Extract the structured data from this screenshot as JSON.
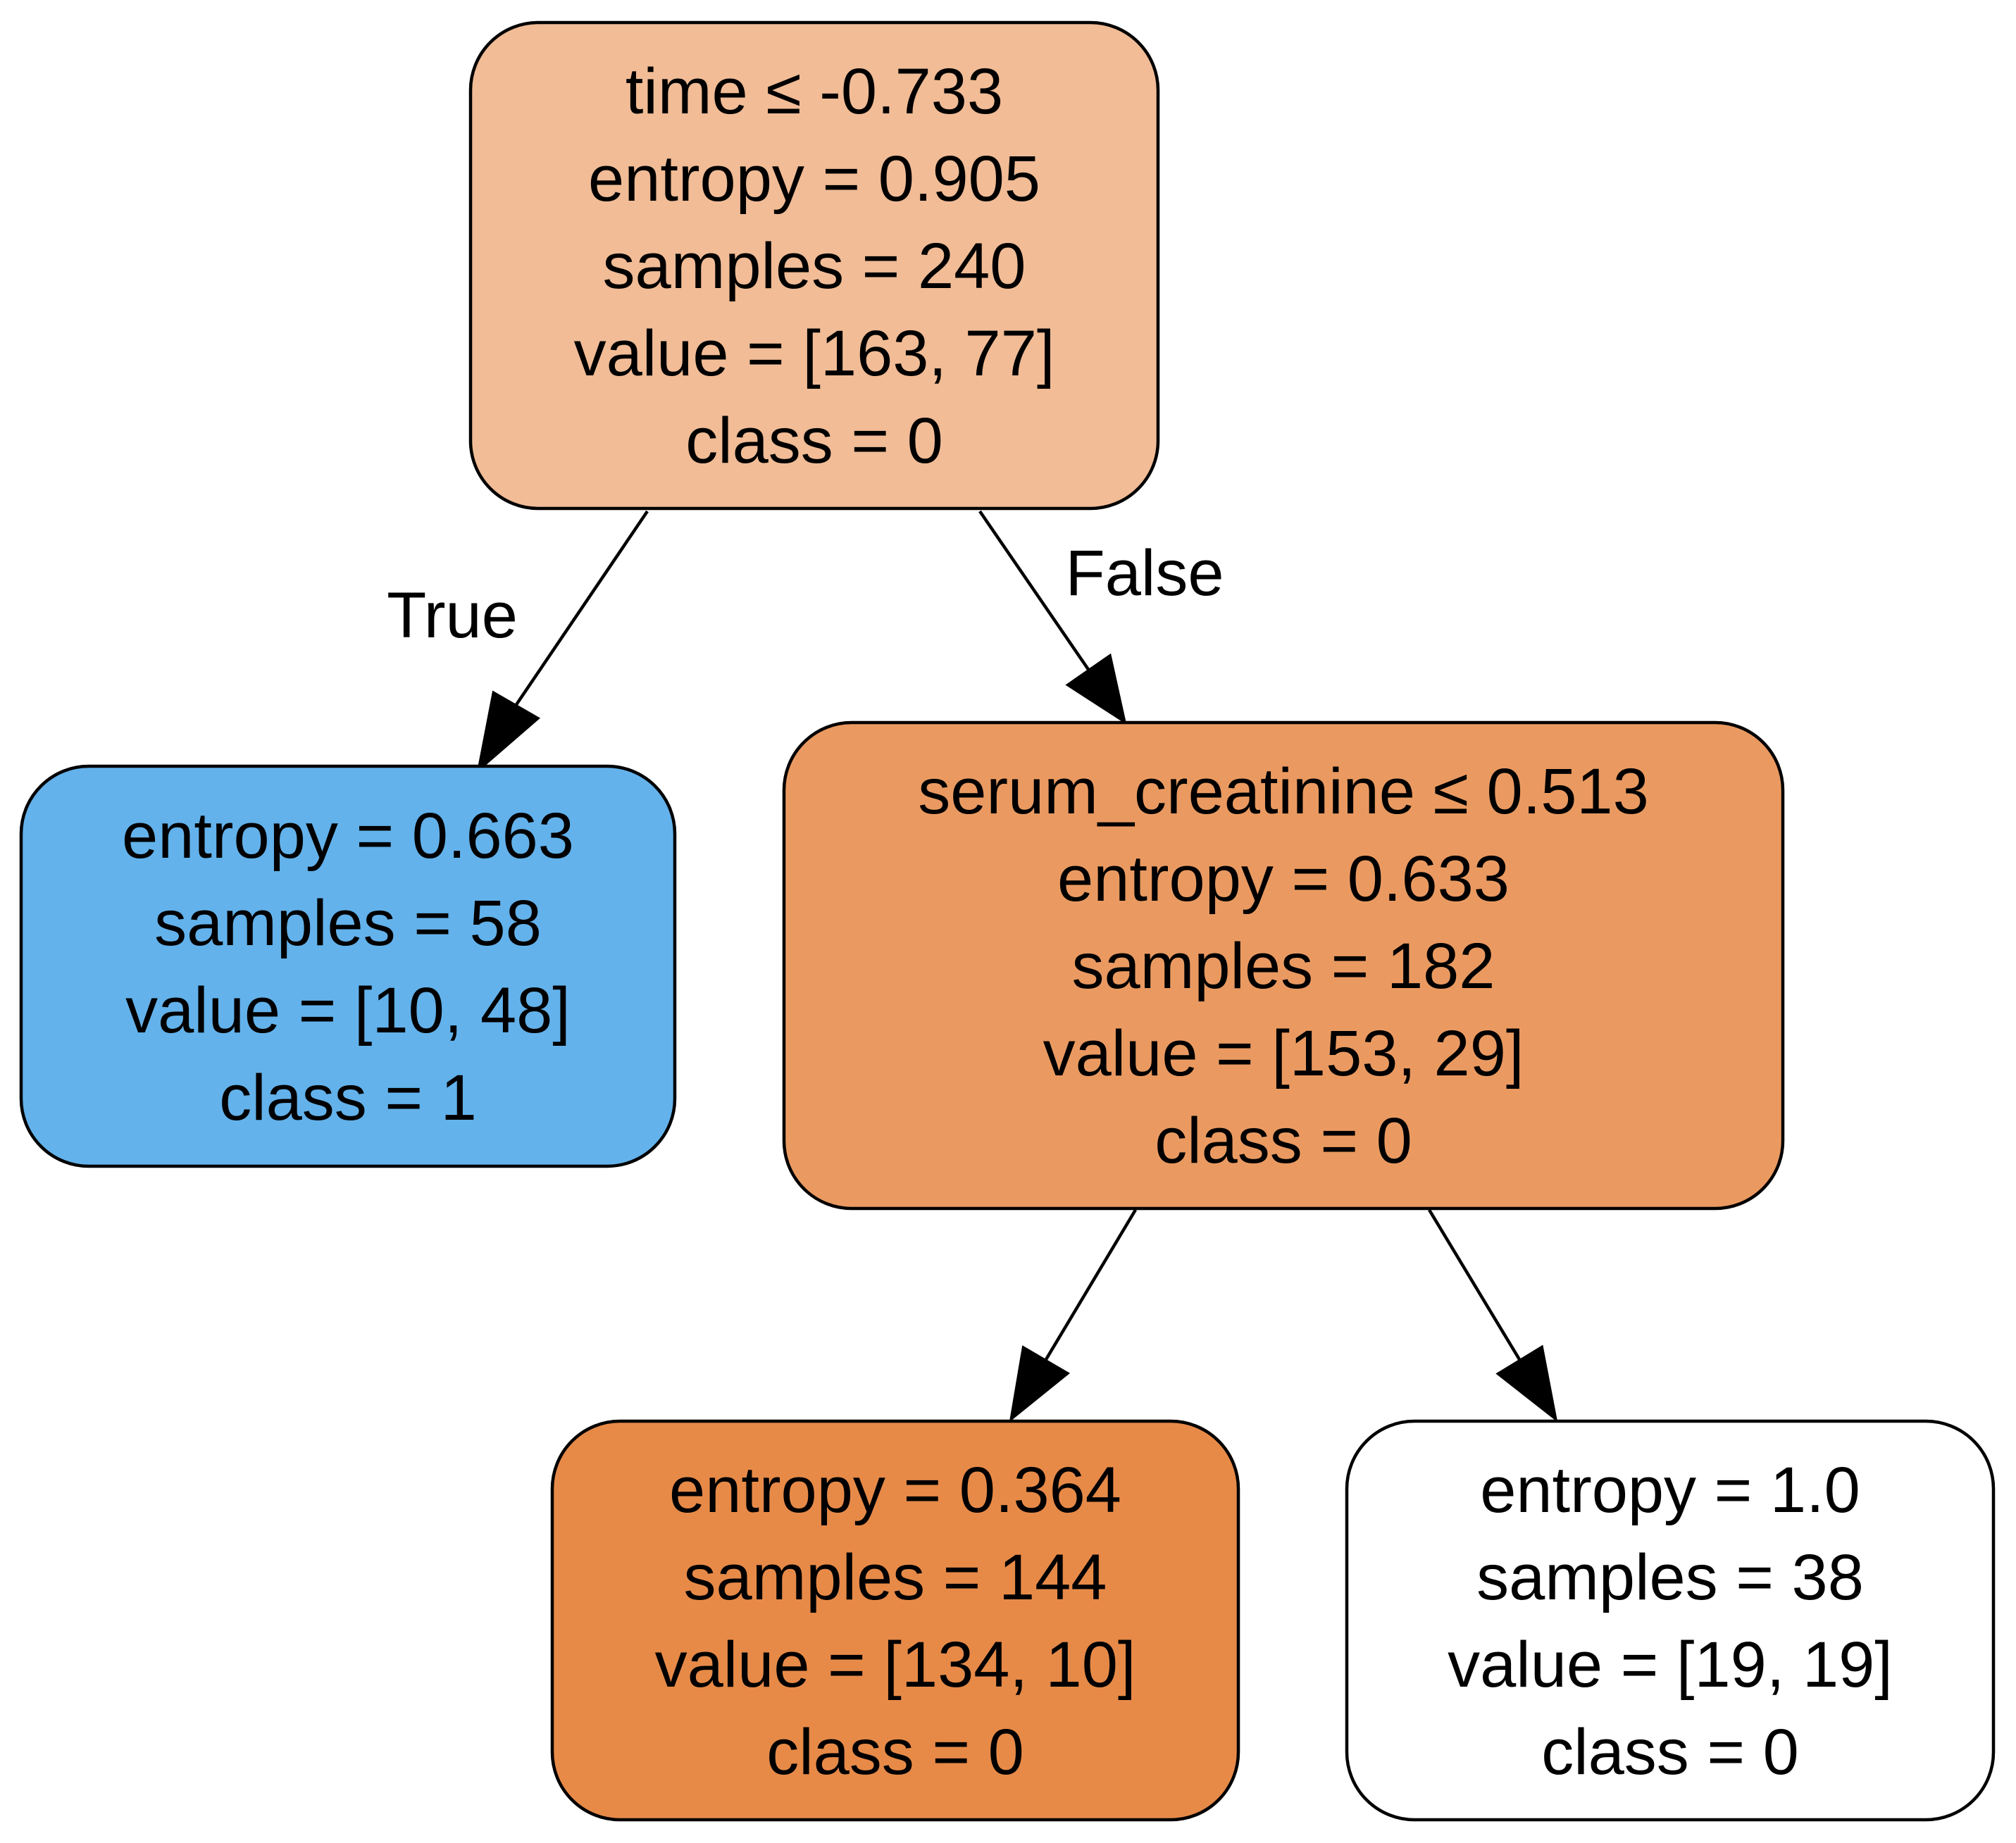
{
  "tree": {
    "nodes": [
      {
        "id": "root",
        "fill": "#f1bc96",
        "lines": [
          "time ≤ -0.733",
          "entropy = 0.905",
          "samples = 240",
          "value = [163, 77]",
          "class = 0"
        ]
      },
      {
        "id": "left-leaf",
        "fill": "#63b2eb",
        "lines": [
          "entropy = 0.663",
          "samples = 58",
          "value = [10, 48]",
          "class = 1"
        ]
      },
      {
        "id": "right-split",
        "fill": "#ea9a61",
        "lines": [
          "serum_creatinine ≤ 0.513",
          "entropy = 0.633",
          "samples = 182",
          "value = [153, 29]",
          "class = 0"
        ]
      },
      {
        "id": "right-left-leaf",
        "fill": "#e78a48",
        "lines": [
          "entropy = 0.364",
          "samples = 144",
          "value = [134, 10]",
          "class = 0"
        ]
      },
      {
        "id": "right-right-leaf",
        "fill": "#ffffff",
        "lines": [
          "entropy = 1.0",
          "samples = 38",
          "value = [19, 19]",
          "class = 0"
        ]
      }
    ],
    "edges": [
      {
        "from": "root",
        "to": "left-leaf",
        "label": "True"
      },
      {
        "from": "root",
        "to": "right-split",
        "label": "False"
      },
      {
        "from": "right-split",
        "to": "right-left-leaf",
        "label": ""
      },
      {
        "from": "right-split",
        "to": "right-right-leaf",
        "label": ""
      }
    ]
  }
}
